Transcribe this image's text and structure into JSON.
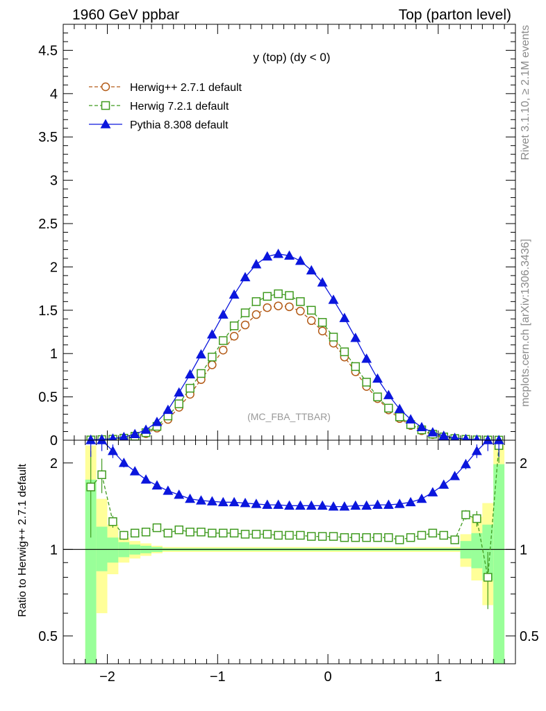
{
  "header": {
    "left": "1960 GeV ppbar",
    "right": "Top (parton level)"
  },
  "side": {
    "top": "Rivet 3.1.10, ≥ 2.1M events",
    "bottom": "mcplots.cern.ch [arXiv:1306.3436]"
  },
  "chart_data": [
    {
      "type": "line",
      "title": "y (top) (dy < 0)",
      "watermark": "(MC_FBA_TTBAR)",
      "xlim": [
        -2.4,
        1.7
      ],
      "ylim": [
        0,
        4.8
      ],
      "yticks": [
        0,
        0.5,
        1,
        1.5,
        2,
        2.5,
        3,
        3.5,
        4,
        4.5
      ],
      "ytick_labels": [
        "0",
        "0.5",
        "1",
        "1.5",
        "2",
        "2.5",
        "3",
        "3.5",
        "4",
        "4.5"
      ],
      "legend_position": "top-left",
      "x": [
        -2.15,
        -2.05,
        -1.95,
        -1.85,
        -1.75,
        -1.65,
        -1.55,
        -1.45,
        -1.35,
        -1.25,
        -1.15,
        -1.05,
        -0.95,
        -0.85,
        -0.75,
        -0.65,
        -0.55,
        -0.45,
        -0.35,
        -0.25,
        -0.15,
        -0.05,
        0.05,
        0.15,
        0.25,
        0.35,
        0.45,
        0.55,
        0.65,
        0.75,
        0.85,
        0.95,
        1.05,
        1.15,
        1.25,
        1.35,
        1.45,
        1.55
      ],
      "series": [
        {
          "name": "Herwig++ 2.7.1 default",
          "color": "#b35a16",
          "marker": "circle-open",
          "dash": "dashed",
          "values": [
            0.002,
            0.004,
            0.009,
            0.02,
            0.04,
            0.075,
            0.14,
            0.24,
            0.38,
            0.53,
            0.7,
            0.87,
            1.04,
            1.2,
            1.33,
            1.45,
            1.53,
            1.55,
            1.54,
            1.49,
            1.38,
            1.26,
            1.12,
            0.96,
            0.79,
            0.62,
            0.48,
            0.35,
            0.25,
            0.17,
            0.11,
            0.065,
            0.035,
            0.018,
            0.008,
            0.003,
            0.001,
            0.0005
          ]
        },
        {
          "name": "Herwig 7.2.1 default",
          "color": "#3f9a1f",
          "marker": "square-open",
          "dash": "dashed",
          "values": [
            0.003,
            0.007,
            0.011,
            0.023,
            0.046,
            0.087,
            0.16,
            0.28,
            0.42,
            0.6,
            0.77,
            0.96,
            1.15,
            1.32,
            1.47,
            1.6,
            1.66,
            1.69,
            1.67,
            1.6,
            1.5,
            1.36,
            1.19,
            1.02,
            0.85,
            0.67,
            0.5,
            0.37,
            0.27,
            0.18,
            0.12,
            0.07,
            0.038,
            0.019,
            0.01,
            0.004,
            0.002,
            0.001
          ]
        },
        {
          "name": "Pythia 8.308 default",
          "color": "#0b16dd",
          "marker": "triangle-filled",
          "dash": "solid",
          "values": [
            0.005,
            0.009,
            0.018,
            0.036,
            0.07,
            0.12,
            0.21,
            0.35,
            0.55,
            0.76,
            0.99,
            1.22,
            1.45,
            1.68,
            1.88,
            2.03,
            2.12,
            2.15,
            2.13,
            2.07,
            1.96,
            1.82,
            1.62,
            1.41,
            1.18,
            0.94,
            0.71,
            0.52,
            0.36,
            0.24,
            0.15,
            0.09,
            0.05,
            0.026,
            0.013,
            0.006,
            0.002,
            0.001
          ]
        }
      ]
    },
    {
      "type": "line",
      "ylabel": "Ratio to Herwig++ 2.7.1 default",
      "scale": "log",
      "ylim": [
        0.4,
        2.4
      ],
      "yticks": [
        0.5,
        1,
        2
      ],
      "ytick_labels": [
        "0.5",
        "1",
        "2"
      ],
      "xlim": [
        -2.4,
        1.7
      ],
      "xticks": [
        -2,
        -1,
        0,
        1
      ],
      "xtick_labels": [
        "−2",
        "−1",
        "0",
        "1"
      ],
      "reference": 1,
      "band_bins": [
        [
          -2.2,
          -2.1
        ],
        [
          -2.1,
          -2.0
        ],
        [
          -2.0,
          -1.9
        ],
        [
          -1.9,
          -1.8
        ],
        [
          -1.8,
          -1.7
        ],
        [
          -1.7,
          -1.6
        ],
        [
          -1.6,
          -1.5
        ],
        [
          -1.5,
          1.2
        ],
        [
          1.2,
          1.3
        ],
        [
          1.3,
          1.4
        ],
        [
          1.4,
          1.5
        ],
        [
          1.5,
          1.6
        ]
      ],
      "band_inner": [
        [
          0.3,
          1.75
        ],
        [
          0.84,
          1.2
        ],
        [
          0.9,
          1.1
        ],
        [
          0.94,
          1.06
        ],
        [
          0.96,
          1.04
        ],
        [
          0.97,
          1.03
        ],
        [
          0.98,
          1.02
        ],
        [
          0.99,
          1.01
        ],
        [
          0.93,
          1.07
        ],
        [
          0.86,
          1.14
        ],
        [
          0.78,
          1.22
        ],
        [
          0.3,
          1.98
        ]
      ],
      "band_outer": [
        [
          0.3,
          2.3
        ],
        [
          0.6,
          1.5
        ],
        [
          0.82,
          1.22
        ],
        [
          0.9,
          1.1
        ],
        [
          0.93,
          1.07
        ],
        [
          0.95,
          1.05
        ],
        [
          0.97,
          1.03
        ],
        [
          0.98,
          1.02
        ],
        [
          0.87,
          1.13
        ],
        [
          0.78,
          1.3
        ],
        [
          0.64,
          1.45
        ],
        [
          0.3,
          2.3
        ]
      ],
      "x": [
        -2.15,
        -2.05,
        -1.95,
        -1.85,
        -1.75,
        -1.65,
        -1.55,
        -1.45,
        -1.35,
        -1.25,
        -1.15,
        -1.05,
        -0.95,
        -0.85,
        -0.75,
        -0.65,
        -0.55,
        -0.45,
        -0.35,
        -0.25,
        -0.15,
        -0.05,
        0.05,
        0.15,
        0.25,
        0.35,
        0.45,
        0.55,
        0.65,
        0.75,
        0.85,
        0.95,
        1.05,
        1.15,
        1.25,
        1.35,
        1.45,
        1.55
      ],
      "series": [
        {
          "name": "Herwig 7.2.1 default",
          "color": "#3f9a1f",
          "marker": "square-open",
          "dash": "dashed",
          "values": [
            1.65,
            1.82,
            1.25,
            1.12,
            1.14,
            1.15,
            1.19,
            1.14,
            1.17,
            1.15,
            1.15,
            1.14,
            1.14,
            1.14,
            1.13,
            1.13,
            1.13,
            1.12,
            1.12,
            1.12,
            1.11,
            1.11,
            1.11,
            1.1,
            1.1,
            1.1,
            1.1,
            1.1,
            1.08,
            1.1,
            1.12,
            1.14,
            1.12,
            1.08,
            1.32,
            1.28,
            0.8,
            2.3
          ],
          "errors": [
            0.55,
            0.25,
            0.06,
            0.04,
            0.025,
            0.02,
            0.015,
            0.012,
            0.01,
            0.01,
            0.01,
            0.01,
            0.01,
            0.01,
            0.01,
            0.01,
            0.01,
            0.01,
            0.01,
            0.01,
            0.01,
            0.01,
            0.01,
            0.01,
            0.01,
            0.01,
            0.01,
            0.01,
            0.01,
            0.01,
            0.012,
            0.015,
            0.02,
            0.03,
            0.05,
            0.08,
            0.18,
            0.3
          ]
        },
        {
          "name": "Pythia 8.308 default",
          "color": "#0b16dd",
          "marker": "triangle-filled",
          "dash": "solid",
          "values": [
            2.4,
            2.4,
            2.2,
            2.0,
            1.87,
            1.75,
            1.67,
            1.6,
            1.55,
            1.5,
            1.48,
            1.47,
            1.46,
            1.46,
            1.45,
            1.44,
            1.43,
            1.43,
            1.42,
            1.42,
            1.42,
            1.42,
            1.41,
            1.41,
            1.42,
            1.42,
            1.43,
            1.43,
            1.44,
            1.46,
            1.5,
            1.58,
            1.68,
            1.8,
            1.98,
            2.2,
            2.4,
            2.4
          ],
          "errors": [
            0.3,
            0.2,
            0.12,
            0.07,
            0.04,
            0.03,
            0.02,
            0.015,
            0.012,
            0.01,
            0.01,
            0.01,
            0.01,
            0.01,
            0.01,
            0.01,
            0.01,
            0.01,
            0.01,
            0.01,
            0.01,
            0.01,
            0.01,
            0.01,
            0.01,
            0.01,
            0.01,
            0.01,
            0.01,
            0.012,
            0.015,
            0.02,
            0.03,
            0.05,
            0.08,
            0.12,
            0.2,
            0.3
          ]
        }
      ]
    }
  ]
}
